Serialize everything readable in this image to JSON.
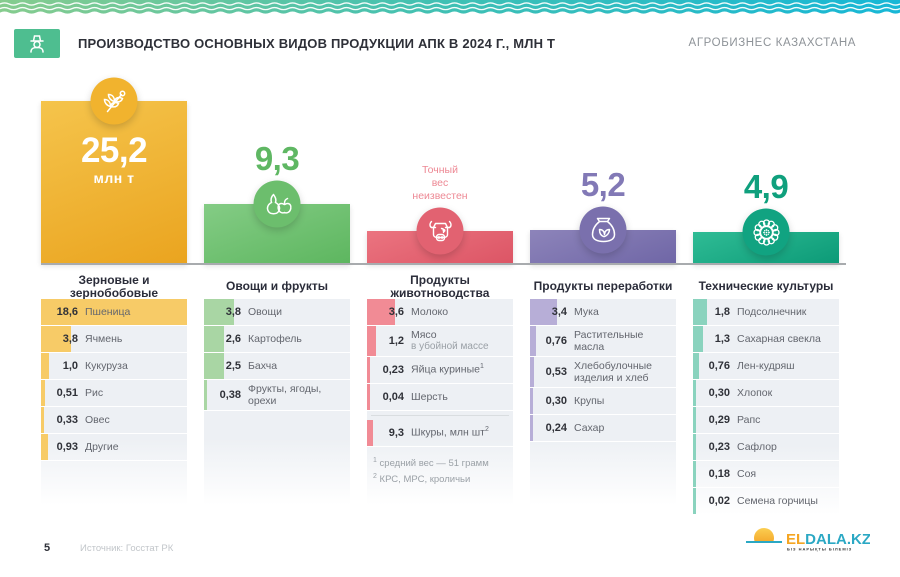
{
  "header": {
    "title": "ПРОИЗВОДСТВО ОСНОВНЫХ ВИДОВ ПРОДУКЦИИ АПК В 2024 Г., МЛН Т",
    "brand": "АГРОБИЗНЕС КАЗАХСТАНА",
    "icon": "farmer-icon"
  },
  "footer": {
    "page_number": "5",
    "source": "Источник: Госстат РК",
    "logo": {
      "part1": "EL",
      "part2": "DALA.KZ",
      "tagline": "БІЗ НАРЫҚТЫ БІЛЕМІЗ",
      "color1": "#F5A623",
      "color2": "#2BA8C4"
    }
  },
  "chart_data": {
    "type": "bar",
    "title": "Производство основных видов продукции АПК в 2024 г., млн т",
    "unit": "млн т",
    "legend_position": "none",
    "grid": false,
    "columns": [
      {
        "name": "Зерновые и зернобобовые",
        "total": "25,2",
        "total_num": 25.2,
        "total_suffix": "млн т",
        "label_position": "inside",
        "icon": "wheat-icon",
        "bar_gradient": [
          "#F5C44C",
          "#EAA41F"
        ],
        "circle_color": "#F1B32E",
        "item_bar_color": "#F7CB67",
        "number_color": "#FFFFFF",
        "items": [
          {
            "value": "18,6",
            "num": 18.6,
            "label": "Пшеница",
            "highlight": true
          },
          {
            "value": "3,8",
            "num": 3.8,
            "label": "Ячмень"
          },
          {
            "value": "1,0",
            "num": 1.0,
            "label": "Кукуруза"
          },
          {
            "value": "0,51",
            "num": 0.51,
            "label": "Рис"
          },
          {
            "value": "0,33",
            "num": 0.33,
            "label": "Овес"
          },
          {
            "value": "0,93",
            "num": 0.93,
            "label": "Другие"
          }
        ]
      },
      {
        "name": "Овощи и фрукты",
        "total": "9,3",
        "total_num": 9.3,
        "label_position": "above",
        "icon": "fruit-icon",
        "bar_gradient": [
          "#84CC85",
          "#5DB65F"
        ],
        "circle_color": "#6CBE6D",
        "item_bar_color": "#A9D6A4",
        "number_color": "#5FB763",
        "items": [
          {
            "value": "3,8",
            "num": 3.8,
            "label": "Овощи"
          },
          {
            "value": "2,6",
            "num": 2.6,
            "label": "Картофель"
          },
          {
            "value": "2,5",
            "num": 2.5,
            "label": "Бахча"
          },
          {
            "value": "0,38",
            "num": 0.38,
            "label": "Фрукты, ягоды, орехи"
          }
        ]
      },
      {
        "name": "Продукты животноводства",
        "total": null,
        "total_num": null,
        "label_position": "note",
        "note": "Точный вес неизвестен",
        "icon": "cow-icon",
        "bar_gradient": [
          "#EB7480",
          "#DC5565"
        ],
        "circle_color": "#E26271",
        "item_bar_color": "#F18B95",
        "number_color": "#ED8894",
        "items": [
          {
            "value": "3,6",
            "num": 3.6,
            "label": "Молоко"
          },
          {
            "value": "1,2",
            "num": 1.2,
            "label": "Мясо",
            "sub": "в убойной массе"
          },
          {
            "value": "0,23",
            "num": 0.23,
            "label": "Яйца куриные",
            "sup": "1"
          },
          {
            "value": "0,04",
            "num": 0.04,
            "label": "Шерсть"
          },
          {
            "value": "9,3",
            "num": 9.3,
            "label": "Шкуры, млн шт",
            "sup": "2",
            "unit": "млн шт",
            "offscale": true,
            "divider_before": true
          }
        ],
        "footnotes": [
          {
            "sup": "1",
            "text": " средний вес — 51 грамм"
          },
          {
            "sup": "2",
            "text": " КРС, МРС, кроличьи"
          }
        ]
      },
      {
        "name": "Продукты переработки",
        "total": "5,2",
        "total_num": 5.2,
        "label_position": "above",
        "icon": "flour-sack-icon",
        "bar_gradient": [
          "#8D84BA",
          "#6F66A6"
        ],
        "circle_color": "#7A70AD",
        "item_bar_color": "#B7AED7",
        "number_color": "#8279B6",
        "items": [
          {
            "value": "3,4",
            "num": 3.4,
            "label": "Мука"
          },
          {
            "value": "0,76",
            "num": 0.76,
            "label": "Растительные масла"
          },
          {
            "value": "0,53",
            "num": 0.53,
            "label": "Хлебобулочные изделия и хлеб"
          },
          {
            "value": "0,30",
            "num": 0.3,
            "label": "Крупы"
          },
          {
            "value": "0,24",
            "num": 0.24,
            "label": "Сахар"
          }
        ]
      },
      {
        "name": "Технические культуры",
        "total": "4,9",
        "total_num": 4.9,
        "label_position": "above",
        "icon": "sunflower-icon",
        "bar_gradient": [
          "#2FBC95",
          "#0C9A77"
        ],
        "circle_color": "#11A381",
        "item_bar_color": "#8AD3BE",
        "number_color": "#0FA07D",
        "items": [
          {
            "value": "1,8",
            "num": 1.8,
            "label": "Подсолнечник"
          },
          {
            "value": "1,3",
            "num": 1.3,
            "label": "Сахарная свекла"
          },
          {
            "value": "0,76",
            "num": 0.76,
            "label": "Лен-кудряш"
          },
          {
            "value": "0,30",
            "num": 0.3,
            "label": "Хлопок"
          },
          {
            "value": "0,29",
            "num": 0.29,
            "label": "Рапс"
          },
          {
            "value": "0,23",
            "num": 0.23,
            "label": "Сафлор"
          },
          {
            "value": "0,18",
            "num": 0.18,
            "label": "Соя"
          },
          {
            "value": "0,02",
            "num": 0.02,
            "label": "Семена горчицы"
          }
        ]
      }
    ]
  }
}
